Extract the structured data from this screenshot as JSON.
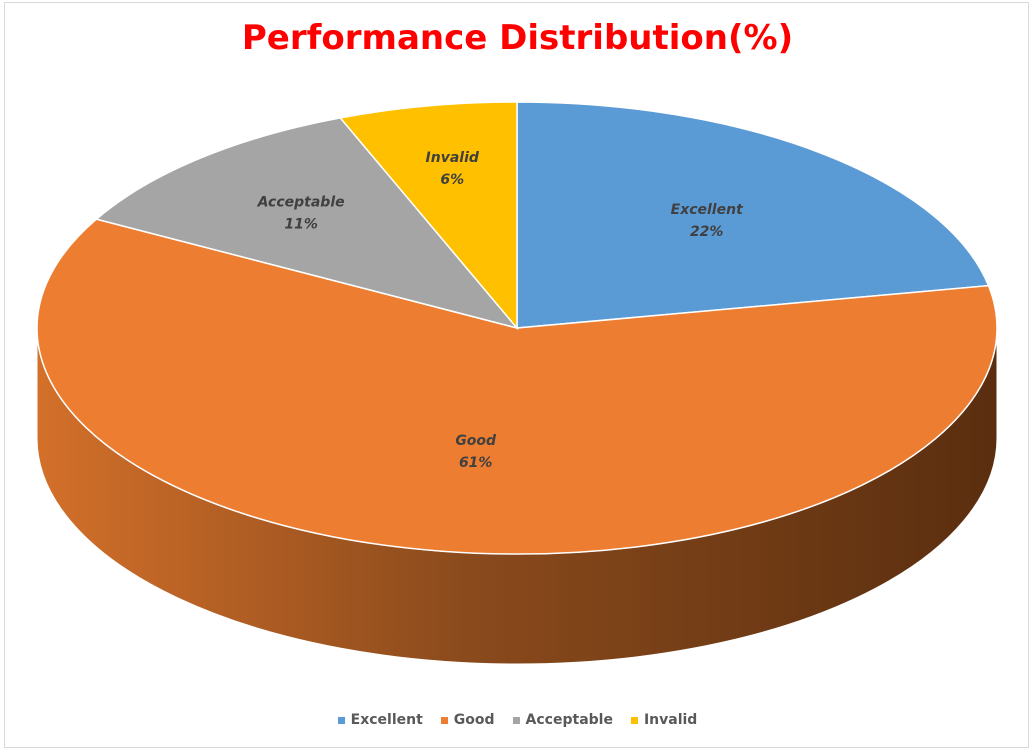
{
  "chart_data": {
    "type": "pie",
    "title": "Performance Distribution(%)",
    "slices": [
      {
        "name": "Excellent",
        "value": 22,
        "label": "22%",
        "color": "#5b9bd5"
      },
      {
        "name": "Good",
        "value": 61,
        "label": "61%",
        "color": "#ed7d31"
      },
      {
        "name": "Acceptable",
        "value": 11,
        "label": "11%",
        "color": "#a5a5a5"
      },
      {
        "name": "Invalid",
        "value": 6,
        "label": "6%",
        "color": "#ffc000"
      }
    ],
    "legend_position": "bottom",
    "style": "3d"
  }
}
